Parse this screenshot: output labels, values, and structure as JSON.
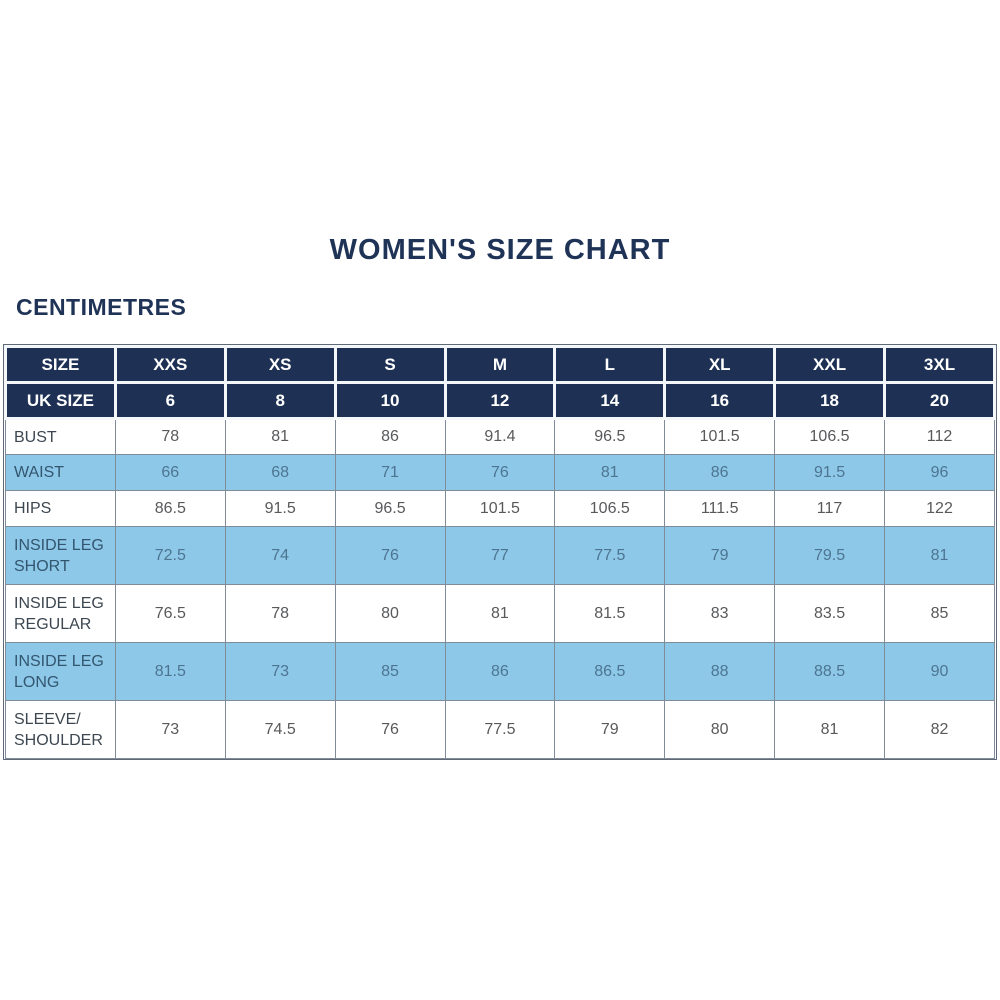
{
  "colors": {
    "navy": "#1e3154",
    "light_blue": "#8dc8e8",
    "header_text": "#ffffff",
    "title_text": "#1e3356",
    "label_text": "#3d4751",
    "label_text_blue": "#33566f",
    "value_text": "#58595b",
    "value_text_blue": "#4d7591",
    "grid_line": "#818c99",
    "outer_line": "#5f6a76",
    "header_gap": "#f4f7fa",
    "page_bg": "#ffffff"
  },
  "chart_data": {
    "type": "table",
    "title": "WOMEN'S SIZE CHART",
    "unit_label": "CENTIMETRES",
    "size_header": {
      "label": "SIZE",
      "values": [
        "XXS",
        "XS",
        "S",
        "M",
        "L",
        "XL",
        "XXL",
        "3XL"
      ]
    },
    "uk_size_header": {
      "label": "UK SIZE",
      "values": [
        "6",
        "8",
        "10",
        "12",
        "14",
        "16",
        "18",
        "20"
      ]
    },
    "rows": [
      {
        "label": "BUST",
        "highlighted": false,
        "values": [
          "78",
          "81",
          "86",
          "91.4",
          "96.5",
          "101.5",
          "106.5",
          "112"
        ]
      },
      {
        "label": "WAIST",
        "highlighted": true,
        "values": [
          "66",
          "68",
          "71",
          "76",
          "81",
          "86",
          "91.5",
          "96"
        ]
      },
      {
        "label": "HIPS",
        "highlighted": false,
        "values": [
          "86.5",
          "91.5",
          "96.5",
          "101.5",
          "106.5",
          "111.5",
          "117",
          "122"
        ]
      },
      {
        "label": "INSIDE LEG\nSHORT",
        "highlighted": true,
        "values": [
          "72.5",
          "74",
          "76",
          "77",
          "77.5",
          "79",
          "79.5",
          "81"
        ]
      },
      {
        "label": "INSIDE LEG\nREGULAR",
        "highlighted": false,
        "values": [
          "76.5",
          "78",
          "80",
          "81",
          "81.5",
          "83",
          "83.5",
          "85"
        ]
      },
      {
        "label": "INSIDE LEG\nLONG",
        "highlighted": true,
        "values": [
          "81.5",
          "73",
          "85",
          "86",
          "86.5",
          "88",
          "88.5",
          "90"
        ]
      },
      {
        "label": "SLEEVE/\nSHOULDER",
        "highlighted": false,
        "values": [
          "73",
          "74.5",
          "76",
          "77.5",
          "79",
          "80",
          "81",
          "82"
        ]
      }
    ]
  }
}
